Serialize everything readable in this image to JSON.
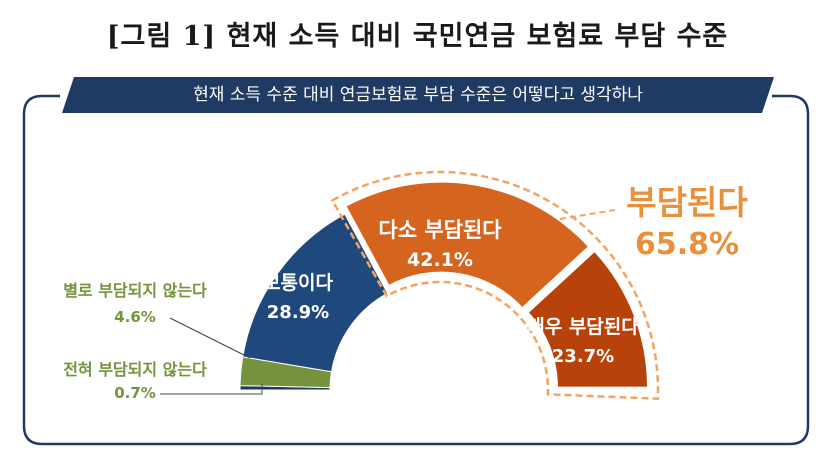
{
  "figure_title": "[그림 1] 현재 소득 대비 국민연금 보험료 부담 수준",
  "question": "현재 소득 수준 대비 연금보험료 부담 수준은 어떻다고 생각하나",
  "colors": {
    "navy": "#1f3b63",
    "green": "#76933c",
    "blue": "#1f497d",
    "orange": "#d5651e",
    "dark_orange": "#b8430a",
    "highlight": "#f4a460",
    "summary_orange": "#e8913a"
  },
  "chart_data": {
    "type": "pie",
    "subtype": "half-donut",
    "title": "현재 소득 대비 국민연금 보험료 부담 수준",
    "unit": "%",
    "slices": [
      {
        "label": "전혀 부담되지 않는다",
        "value": 0.7,
        "value_label": "0.7%",
        "color": "#1f3b63"
      },
      {
        "label": "별로 부담되지 않는다",
        "value": 4.6,
        "value_label": "4.6%",
        "color": "#76933c"
      },
      {
        "label": "보통이다",
        "value": 28.9,
        "value_label": "28.9%",
        "color": "#1f497d"
      },
      {
        "label": "다소 부담된다",
        "value": 42.1,
        "value_label": "42.1%",
        "color": "#d5651e"
      },
      {
        "label": "매우 부담된다",
        "value": 23.7,
        "value_label": "23.7%",
        "color": "#b8430a"
      }
    ],
    "summary": {
      "label": "부담된다",
      "value": 65.8,
      "value_label": "65.8%"
    }
  }
}
